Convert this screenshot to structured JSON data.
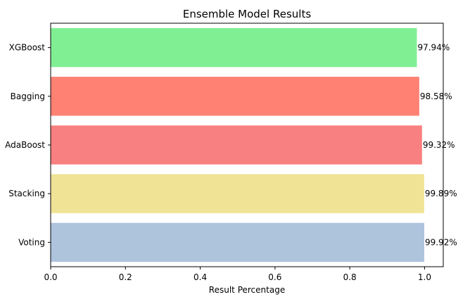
{
  "chart_data": {
    "type": "bar",
    "orientation": "horizontal",
    "title": "Ensemble Model Results",
    "xlabel": "Result Percentage",
    "ylabel": "",
    "xlim": [
      0,
      1.05
    ],
    "xticks": [
      0.0,
      0.2,
      0.4,
      0.6,
      0.8,
      1.0
    ],
    "xtick_labels": [
      "0.0",
      "0.2",
      "0.4",
      "0.6",
      "0.8",
      "1.0"
    ],
    "categories": [
      "Voting",
      "Stacking",
      "AdaBoost",
      "Bagging",
      "XGBoost"
    ],
    "values": [
      0.9992,
      0.9989,
      0.9932,
      0.9858,
      0.9794
    ],
    "data_labels": [
      "99.92%",
      "99.89%",
      "99.32%",
      "98.58%",
      "97.94%"
    ],
    "colors": [
      "#aec4dd",
      "#f0e396",
      "#f98080",
      "#fe8173",
      "#80ef93"
    ],
    "grid": false,
    "legend": "none"
  }
}
